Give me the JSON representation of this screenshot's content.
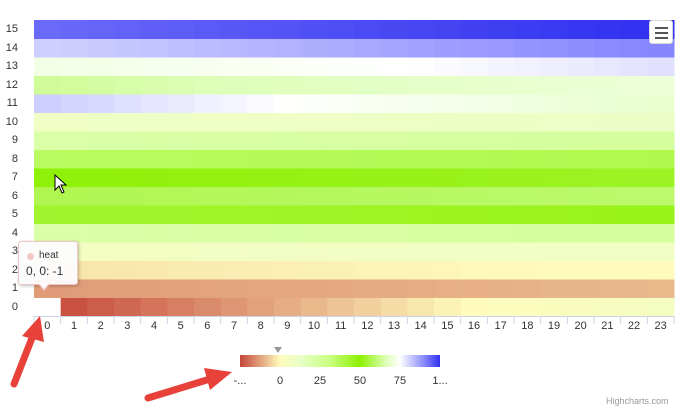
{
  "menu": {
    "icon": "hamburger-menu-icon"
  },
  "tooltip": {
    "series_name": "heat",
    "point_text": "0, 0: -1",
    "dot_color": "#f0c8c8"
  },
  "legend": {
    "labels": [
      "-...",
      "0",
      "25",
      "50",
      "75",
      "1..."
    ],
    "marker_value": 0,
    "stops": [
      "#c4463a",
      "#fffbbc",
      "#e8ffc8",
      "#c8ff80",
      "#8cf000",
      "#ddffb8",
      "#ffffff",
      "#8a8aff",
      "#3030f0"
    ]
  },
  "credits": "Highcharts.com",
  "chart_data": {
    "type": "heatmap",
    "x": [
      0,
      1,
      2,
      3,
      4,
      5,
      6,
      7,
      8,
      9,
      10,
      11,
      12,
      13,
      14,
      15,
      16,
      17,
      18,
      19,
      20,
      21,
      22,
      23
    ],
    "y": [
      0,
      1,
      2,
      3,
      4,
      5,
      6,
      7,
      8,
      9,
      10,
      11,
      12,
      13,
      14,
      15
    ],
    "row_values": [
      -1,
      5,
      10,
      18,
      30,
      45,
      55,
      50,
      40,
      30,
      20,
      12,
      68,
      78,
      88,
      100
    ],
    "missing_cells": [
      [
        0,
        0
      ]
    ],
    "color_range": [
      -1,
      100
    ],
    "series_name": "heat",
    "legend": "bottom-center",
    "grid": false
  }
}
